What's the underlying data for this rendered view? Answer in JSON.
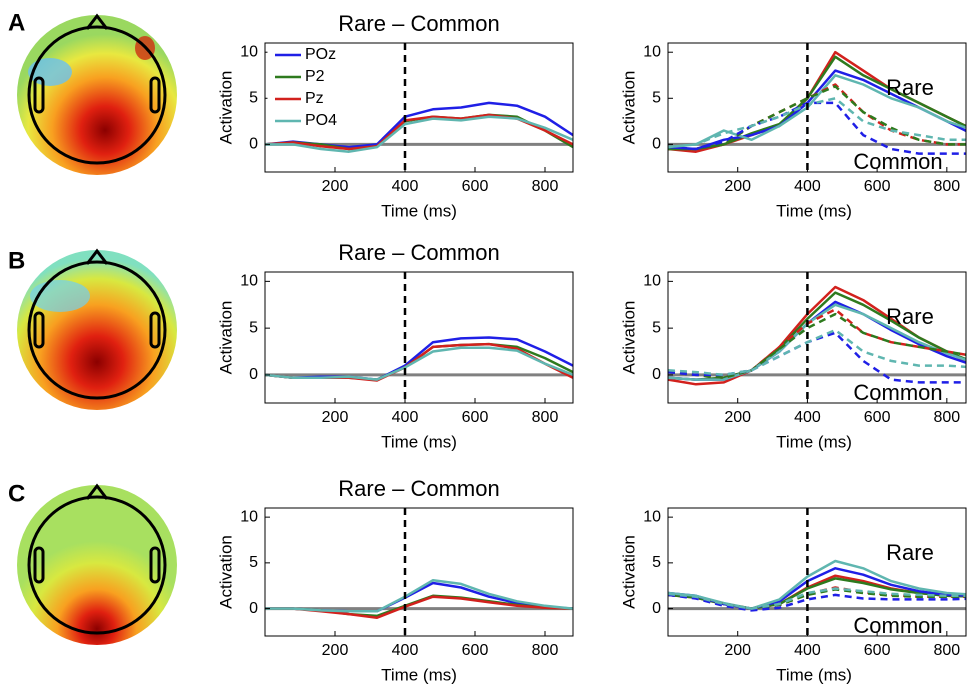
{
  "panel_labels": [
    "A",
    "B",
    "C"
  ],
  "chart_data": [
    {
      "type": "line",
      "title": "Rare – Common",
      "xlabel": "Time (ms)",
      "ylabel": "Activation",
      "x": [
        0,
        80,
        160,
        240,
        320,
        400,
        480,
        560,
        640,
        720,
        800,
        880
      ],
      "xlim": [
        0,
        880
      ],
      "ylim": [
        -3,
        11
      ],
      "xticks": [
        200,
        400,
        600,
        800
      ],
      "yticks": [
        0,
        5,
        10
      ],
      "vline": 400,
      "hline": 0,
      "legend": "upper left",
      "series": [
        {
          "name": "POz",
          "color": "#1f1fe6",
          "values": [
            0,
            0.3,
            0,
            -0.3,
            0,
            3,
            3.8,
            4,
            4.5,
            4.2,
            3,
            1
          ]
        },
        {
          "name": "P2",
          "color": "#2e7a1e",
          "values": [
            0,
            0.2,
            0,
            -0.5,
            -0.2,
            2.5,
            3,
            2.8,
            3.2,
            3,
            1.5,
            -0.3
          ]
        },
        {
          "name": "Pz",
          "color": "#d2211d",
          "values": [
            0,
            0.2,
            -0.2,
            -0.5,
            -0.2,
            2.6,
            3,
            2.8,
            3.2,
            2.8,
            1.5,
            0
          ]
        },
        {
          "name": "PO4",
          "color": "#5fb6b0",
          "values": [
            0,
            0,
            -0.5,
            -0.8,
            -0.3,
            2.2,
            2.8,
            2.6,
            3,
            2.8,
            1.8,
            0.5
          ]
        }
      ]
    },
    {
      "type": "line",
      "xlabel": "Time (ms)",
      "ylabel": "Activation",
      "annotations": [
        "Rare",
        "Common"
      ],
      "x": [
        0,
        80,
        160,
        240,
        320,
        400,
        480,
        560,
        640,
        720,
        800,
        880
      ],
      "xlim": [
        0,
        855
      ],
      "ylim": [
        -3,
        11
      ],
      "xticks": [
        200,
        400,
        600,
        800
      ],
      "yticks": [
        0,
        5,
        10
      ],
      "vline": 400,
      "hline": 0,
      "series": [
        {
          "color": "#d2211d",
          "values": [
            -0.5,
            -0.8,
            0,
            1,
            2,
            5,
            10,
            8,
            6,
            4.5,
            3,
            1.5
          ]
        },
        {
          "color": "#2e7a1e",
          "values": [
            -0.5,
            -0.5,
            0,
            1.2,
            2.2,
            5,
            9.5,
            7.5,
            6,
            4.5,
            3,
            1.5
          ]
        },
        {
          "color": "#1f1fe6",
          "values": [
            -0.3,
            -0.5,
            0.5,
            1,
            2,
            4.5,
            8,
            7,
            5.5,
            4,
            2.5,
            1
          ]
        },
        {
          "color": "#5fb6b0",
          "values": [
            -0.3,
            0,
            1.5,
            0.5,
            2,
            4,
            7.5,
            6.5,
            5,
            4,
            2.5,
            1.5
          ]
        },
        {
          "color": "#d2211d",
          "dashed": true,
          "values": [
            -0.5,
            -0.5,
            0,
            2,
            3.5,
            5,
            6.5,
            3.5,
            1.5,
            0.5,
            0,
            0
          ]
        },
        {
          "color": "#2e7a1e",
          "dashed": true,
          "values": [
            -0.5,
            -0.5,
            0,
            2,
            3.5,
            5,
            6.3,
            3.5,
            1.8,
            0.5,
            0,
            0
          ]
        },
        {
          "color": "#1f1fe6",
          "dashed": true,
          "values": [
            -0.3,
            -0.5,
            0.3,
            2,
            3,
            4.5,
            4.5,
            1,
            -0.5,
            -1,
            -1,
            -1
          ]
        },
        {
          "color": "#5fb6b0",
          "dashed": true,
          "values": [
            -0.3,
            0,
            1.2,
            2,
            3,
            4.3,
            5,
            2.5,
            1.5,
            1,
            0.5,
            0.5
          ]
        }
      ]
    },
    {
      "type": "line",
      "title": "Rare – Common",
      "xlabel": "Time (ms)",
      "ylabel": "Activation",
      "x": [
        0,
        80,
        160,
        240,
        320,
        400,
        480,
        560,
        640,
        720,
        800,
        880
      ],
      "xlim": [
        0,
        880
      ],
      "ylim": [
        -3,
        11
      ],
      "xticks": [
        200,
        400,
        600,
        800
      ],
      "yticks": [
        0,
        5,
        10
      ],
      "vline": 400,
      "hline": 0,
      "series": [
        {
          "color": "#1f1fe6",
          "values": [
            0,
            -0.3,
            -0.2,
            -0.2,
            -0.5,
            1,
            3.5,
            3.9,
            4,
            3.8,
            2.5,
            1
          ]
        },
        {
          "color": "#2e7a1e",
          "values": [
            0,
            -0.3,
            -0.3,
            -0.3,
            -0.5,
            0.8,
            3,
            3.2,
            3.3,
            3,
            1.8,
            0.3
          ]
        },
        {
          "color": "#d2211d",
          "values": [
            0,
            -0.3,
            -0.3,
            -0.3,
            -0.6,
            0.8,
            3,
            3.2,
            3.3,
            2.8,
            1.2,
            -0.3
          ]
        },
        {
          "color": "#5fb6b0",
          "values": [
            0,
            -0.3,
            -0.3,
            -0.2,
            -0.5,
            0.8,
            2.5,
            2.9,
            2.9,
            2.6,
            1.2,
            0
          ]
        }
      ]
    },
    {
      "type": "line",
      "xlabel": "Time (ms)",
      "ylabel": "Activation",
      "annotations": [
        "Rare",
        "Common"
      ],
      "x": [
        0,
        80,
        160,
        240,
        320,
        400,
        480,
        560,
        640,
        720,
        800,
        880
      ],
      "xlim": [
        0,
        855
      ],
      "ylim": [
        -3,
        11
      ],
      "xticks": [
        200,
        400,
        600,
        800
      ],
      "yticks": [
        0,
        5,
        10
      ],
      "vline": 400,
      "hline": 0,
      "series": [
        {
          "color": "#d2211d",
          "values": [
            -0.5,
            -1,
            -0.8,
            0.5,
            3,
            6.5,
            9.4,
            8,
            6,
            4,
            2.5,
            1
          ]
        },
        {
          "color": "#2e7a1e",
          "values": [
            -0.3,
            -0.5,
            -0.3,
            0.5,
            2.8,
            6,
            8.8,
            7.5,
            5.8,
            4,
            2.5,
            1.3
          ]
        },
        {
          "color": "#1f1fe6",
          "values": [
            -0.3,
            -0.5,
            -0.5,
            0.5,
            2.5,
            5.5,
            7.8,
            6.5,
            4.8,
            3.3,
            2,
            1
          ]
        },
        {
          "color": "#5fb6b0",
          "values": [
            -0.3,
            -0.5,
            -0.5,
            0.5,
            2.5,
            5.5,
            7.5,
            6.5,
            5,
            3.5,
            2.3,
            1.3
          ]
        },
        {
          "color": "#d2211d",
          "dashed": true,
          "values": [
            0.3,
            0,
            -0.3,
            0.5,
            3,
            5.5,
            7,
            4.5,
            3.5,
            3,
            2.5,
            2
          ]
        },
        {
          "color": "#2e7a1e",
          "dashed": true,
          "values": [
            0.3,
            0,
            -0.3,
            0.5,
            2.8,
            5,
            6.5,
            4.5,
            3.5,
            3,
            2.5,
            2
          ]
        },
        {
          "color": "#1f1fe6",
          "dashed": true,
          "values": [
            0.3,
            0,
            0,
            0.5,
            2,
            3.5,
            4.5,
            1.5,
            -0.5,
            -0.8,
            -0.8,
            -0.8
          ]
        },
        {
          "color": "#5fb6b0",
          "dashed": true,
          "values": [
            0.5,
            0.3,
            0,
            0.5,
            2,
            3.5,
            4.8,
            2.5,
            1.5,
            1,
            1,
            0.8
          ]
        }
      ]
    },
    {
      "type": "line",
      "title": "Rare – Common",
      "xlabel": "Time (ms)",
      "ylabel": "Activation",
      "x": [
        0,
        80,
        160,
        240,
        320,
        400,
        480,
        560,
        640,
        720,
        800,
        880
      ],
      "xlim": [
        0,
        880
      ],
      "ylim": [
        -3,
        11
      ],
      "xticks": [
        200,
        400,
        600,
        800
      ],
      "yticks": [
        0,
        5,
        10
      ],
      "vline": 400,
      "hline": 0,
      "series": [
        {
          "color": "#1f1fe6",
          "values": [
            0,
            0,
            -0.2,
            -0.3,
            -0.3,
            1.2,
            2.8,
            2.3,
            1.3,
            0.6,
            0.2,
            0
          ]
        },
        {
          "color": "#2e7a1e",
          "values": [
            0,
            0,
            -0.2,
            -0.6,
            -0.8,
            0.3,
            1.4,
            1.2,
            0.8,
            0.4,
            0.1,
            0
          ]
        },
        {
          "color": "#d2211d",
          "values": [
            0,
            0,
            -0.3,
            -0.6,
            -1,
            0.2,
            1.3,
            1.1,
            0.7,
            0.3,
            0.1,
            0
          ]
        },
        {
          "color": "#5fb6b0",
          "values": [
            0,
            0,
            -0.2,
            -0.3,
            -0.3,
            1.3,
            3.1,
            2.7,
            1.6,
            0.8,
            0.3,
            0
          ]
        }
      ]
    },
    {
      "type": "line",
      "xlabel": "Time (ms)",
      "ylabel": "Activation",
      "annotations": [
        "Rare",
        "Common"
      ],
      "x": [
        0,
        80,
        160,
        240,
        320,
        400,
        480,
        560,
        640,
        720,
        800,
        880
      ],
      "xlim": [
        0,
        855
      ],
      "ylim": [
        -3,
        11
      ],
      "xticks": [
        200,
        400,
        600,
        800
      ],
      "yticks": [
        0,
        5,
        10
      ],
      "vline": 400,
      "hline": 0,
      "series": [
        {
          "color": "#d2211d",
          "values": [
            1.5,
            1.2,
            0.5,
            0,
            0.5,
            2.3,
            3.6,
            3,
            2.2,
            1.7,
            1.4,
            1.3
          ]
        },
        {
          "color": "#2e7a1e",
          "values": [
            1.5,
            1.2,
            0.5,
            0,
            0.5,
            2.2,
            3.3,
            2.8,
            2.1,
            1.7,
            1.4,
            1.3
          ]
        },
        {
          "color": "#1f1fe6",
          "values": [
            1.7,
            1.4,
            0.5,
            0,
            0.8,
            3,
            4.4,
            3.7,
            2.6,
            1.9,
            1.5,
            1.4
          ]
        },
        {
          "color": "#5fb6b0",
          "values": [
            1.7,
            1.4,
            0.6,
            0,
            1,
            3.5,
            5.2,
            4.4,
            3,
            2.2,
            1.7,
            1.5
          ]
        },
        {
          "color": "#d2211d",
          "dashed": true,
          "values": [
            1.5,
            1.2,
            0.5,
            0,
            0.4,
            1.6,
            2.3,
            1.8,
            1.5,
            1.3,
            1.3,
            1.3
          ]
        },
        {
          "color": "#2e7a1e",
          "dashed": true,
          "values": [
            1.5,
            1.2,
            0.5,
            0,
            0.4,
            1.5,
            2.1,
            1.7,
            1.4,
            1.3,
            1.3,
            1.3
          ]
        },
        {
          "color": "#1f1fe6",
          "dashed": true,
          "values": [
            1.5,
            1.1,
            0.3,
            -0.2,
            0.1,
            1,
            1.5,
            1.1,
            1,
            1,
            1,
            1.1
          ]
        },
        {
          "color": "#5fb6b0",
          "dashed": true,
          "values": [
            1.6,
            1.3,
            0.5,
            0,
            0.5,
            1.7,
            2.2,
            1.9,
            1.6,
            1.5,
            1.4,
            1.4
          ]
        }
      ]
    }
  ]
}
